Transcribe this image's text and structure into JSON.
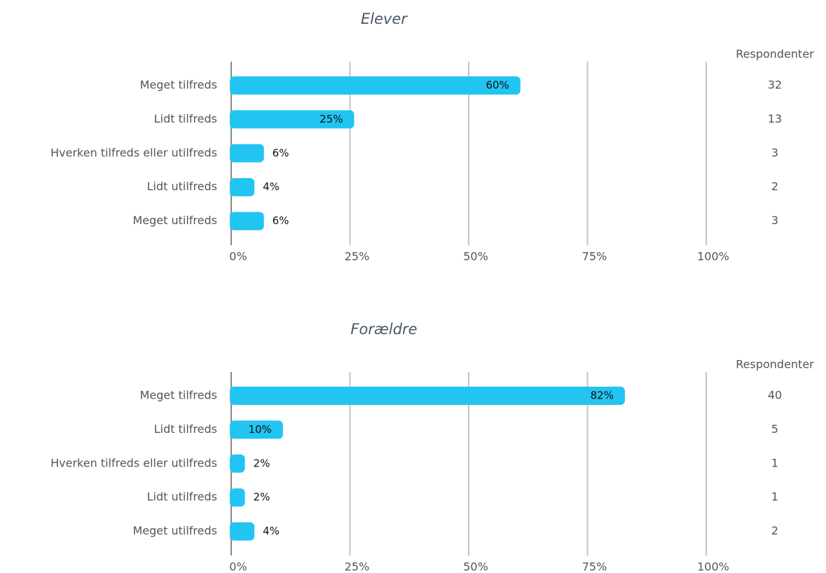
{
  "chart_data": [
    {
      "type": "bar",
      "orientation": "horizontal",
      "title": "Elever",
      "categories": [
        "Meget tilfreds",
        "Lidt tilfreds",
        "Hverken tilfreds eller utilfreds",
        "Lidt utilfreds",
        "Meget utilfreds"
      ],
      "values": [
        60,
        25,
        6,
        4,
        6
      ],
      "value_labels": [
        "60%",
        "25%",
        "6%",
        "4%",
        "6%"
      ],
      "color": "#22c4f2",
      "xlim": [
        0,
        100
      ],
      "xticks": [
        {
          "value": 0,
          "label": "0%"
        },
        {
          "value": 25,
          "label": "25%"
        },
        {
          "value": 50,
          "label": "50%"
        },
        {
          "value": 75,
          "label": "75%"
        },
        {
          "value": 100,
          "label": "100%"
        }
      ],
      "grid": true,
      "respondents_label": "Respondenter",
      "respondents": [
        32,
        13,
        3,
        2,
        3
      ]
    },
    {
      "type": "bar",
      "orientation": "horizontal",
      "title": "Forældre",
      "categories": [
        "Meget tilfreds",
        "Lidt tilfreds",
        "Hverken tilfreds eller utilfreds",
        "Lidt utilfreds",
        "Meget utilfreds"
      ],
      "values": [
        82,
        10,
        2,
        2,
        4
      ],
      "value_labels": [
        "82%",
        "10%",
        "2%",
        "2%",
        "4%"
      ],
      "color": "#22c4f2",
      "xlim": [
        0,
        100
      ],
      "xticks": [
        {
          "value": 0,
          "label": "0%"
        },
        {
          "value": 25,
          "label": "25%"
        },
        {
          "value": 50,
          "label": "50%"
        },
        {
          "value": 75,
          "label": "75%"
        },
        {
          "value": 100,
          "label": "100%"
        }
      ],
      "grid": true,
      "respondents_label": "Respondenter",
      "respondents": [
        40,
        5,
        1,
        1,
        2
      ]
    }
  ]
}
